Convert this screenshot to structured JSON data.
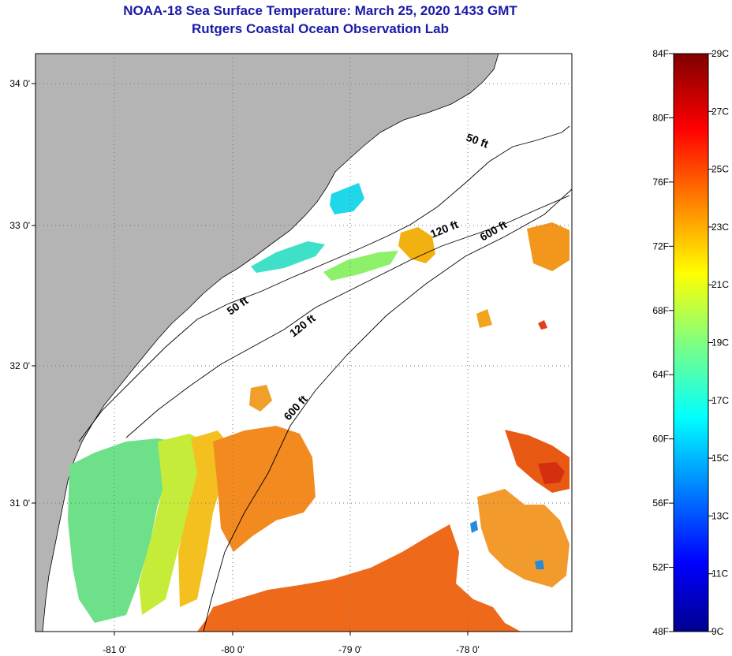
{
  "title": "NOAA-18 Sea Surface Temperature:  March 25, 2020 1433 GMT",
  "subtitle": "Rutgers Coastal Ocean Observation Lab",
  "map": {
    "lon_ticks": [
      "-81 0'",
      "-80 0'",
      "-79 0'",
      "-78 0'"
    ],
    "lat_ticks": [
      "34 0'",
      "33 0'",
      "32 0'",
      "31 0'"
    ],
    "contour_labels": [
      "50 ft",
      "50 ft",
      "120 ft",
      "120 ft",
      "600 ft",
      "600 ft"
    ],
    "colors": {
      "land": "#b4b4b4",
      "ocean_nodata": "#ffffff",
      "grid": "#777777",
      "contour": "#000000"
    }
  },
  "colorbar": {
    "fahrenheit": [
      "84F",
      "80F",
      "76F",
      "72F",
      "68F",
      "64F",
      "60F",
      "56F",
      "52F",
      "48F"
    ],
    "celsius": [
      "29C",
      "27C",
      "25C",
      "23C",
      "21C",
      "19C",
      "17C",
      "15C",
      "13C",
      "11C",
      "9C"
    ],
    "colormap": "jet"
  }
}
